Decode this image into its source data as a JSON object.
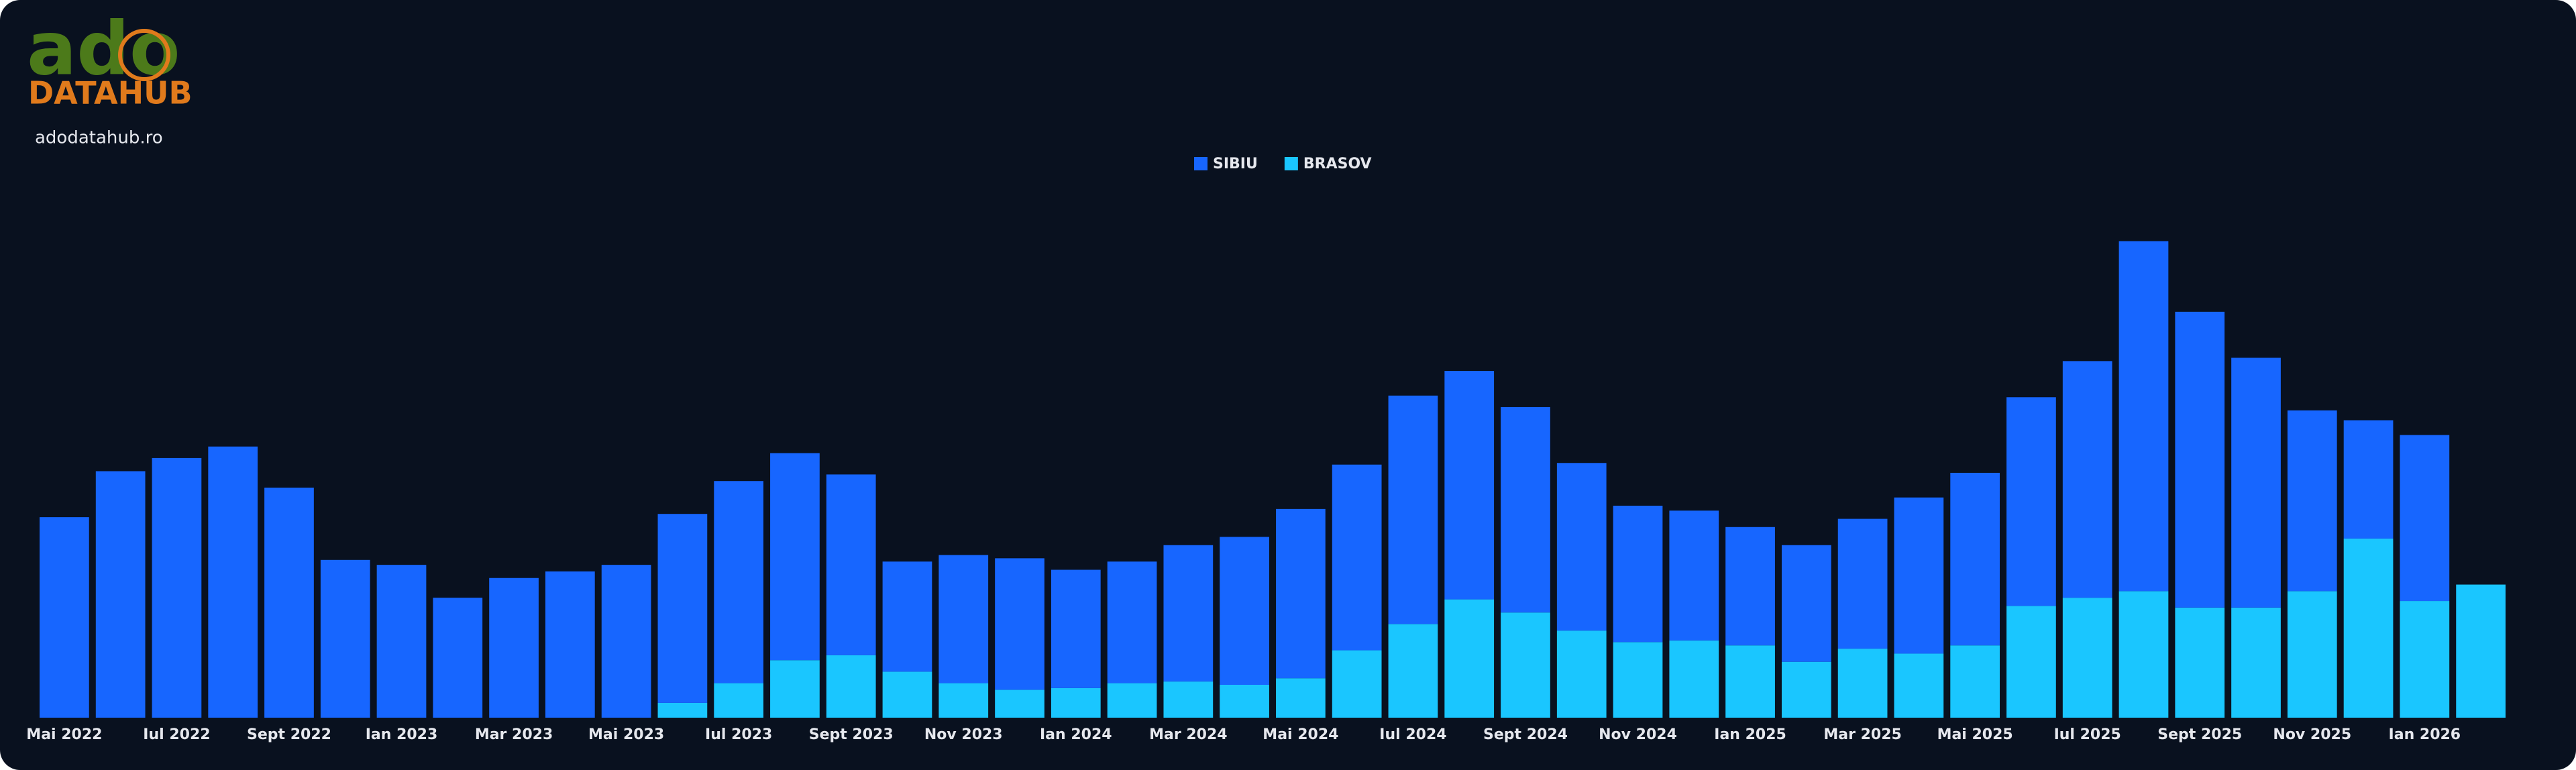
{
  "brand": {
    "logo_top": "ado",
    "logo_bottom": "DATAHUB",
    "site": "adodatahub.ro"
  },
  "chart_data": {
    "type": "stacked_bar",
    "categories": [
      "Mai 2022",
      null,
      "Iul 2022",
      null,
      "Sept 2022",
      null,
      "Ian 2023",
      null,
      "Mar 2023",
      null,
      "Mai 2023",
      null,
      "Iul 2023",
      null,
      "Sept 2023",
      null,
      "Nov 2023",
      null,
      "Ian 2024",
      null,
      "Mar 2024",
      null,
      "Mai 2024",
      null,
      "Iul 2024",
      null,
      "Sept 2024",
      null,
      "Nov 2024",
      null,
      "Ian 2025",
      null,
      "Mar 2025",
      null,
      "Mai 2025",
      null,
      "Iul 2025",
      null,
      "Sept 2025",
      null,
      "Nov 2025",
      null,
      "Ian 2026",
      null
    ],
    "series": [
      {
        "name": "BRASOV",
        "color": "#1ac6ff",
        "values": [
          null,
          null,
          null,
          null,
          null,
          null,
          null,
          null,
          null,
          null,
          null,
          9,
          21,
          35,
          38,
          28,
          21,
          17,
          18,
          21,
          22,
          20,
          24,
          41,
          57,
          72,
          64,
          53,
          46,
          47,
          44,
          34,
          42,
          39,
          44,
          68,
          73,
          77,
          67,
          67,
          77,
          109,
          71,
          81
        ]
      },
      {
        "name": "SIBIU",
        "color": "#1766ff",
        "values": [
          122,
          150,
          158,
          165,
          140,
          96,
          93,
          73,
          85,
          89,
          93,
          115,
          123,
          126,
          110,
          67,
          78,
          80,
          72,
          74,
          83,
          90,
          103,
          113,
          139,
          139,
          125,
          102,
          83,
          79,
          72,
          71,
          79,
          95,
          105,
          127,
          144,
          213,
          180,
          152,
          110,
          72,
          101,
          null
        ]
      }
    ],
    "legend_order": [
      "SIBIU",
      "BRASOV"
    ],
    "ylim": [
      0,
      300
    ]
  }
}
